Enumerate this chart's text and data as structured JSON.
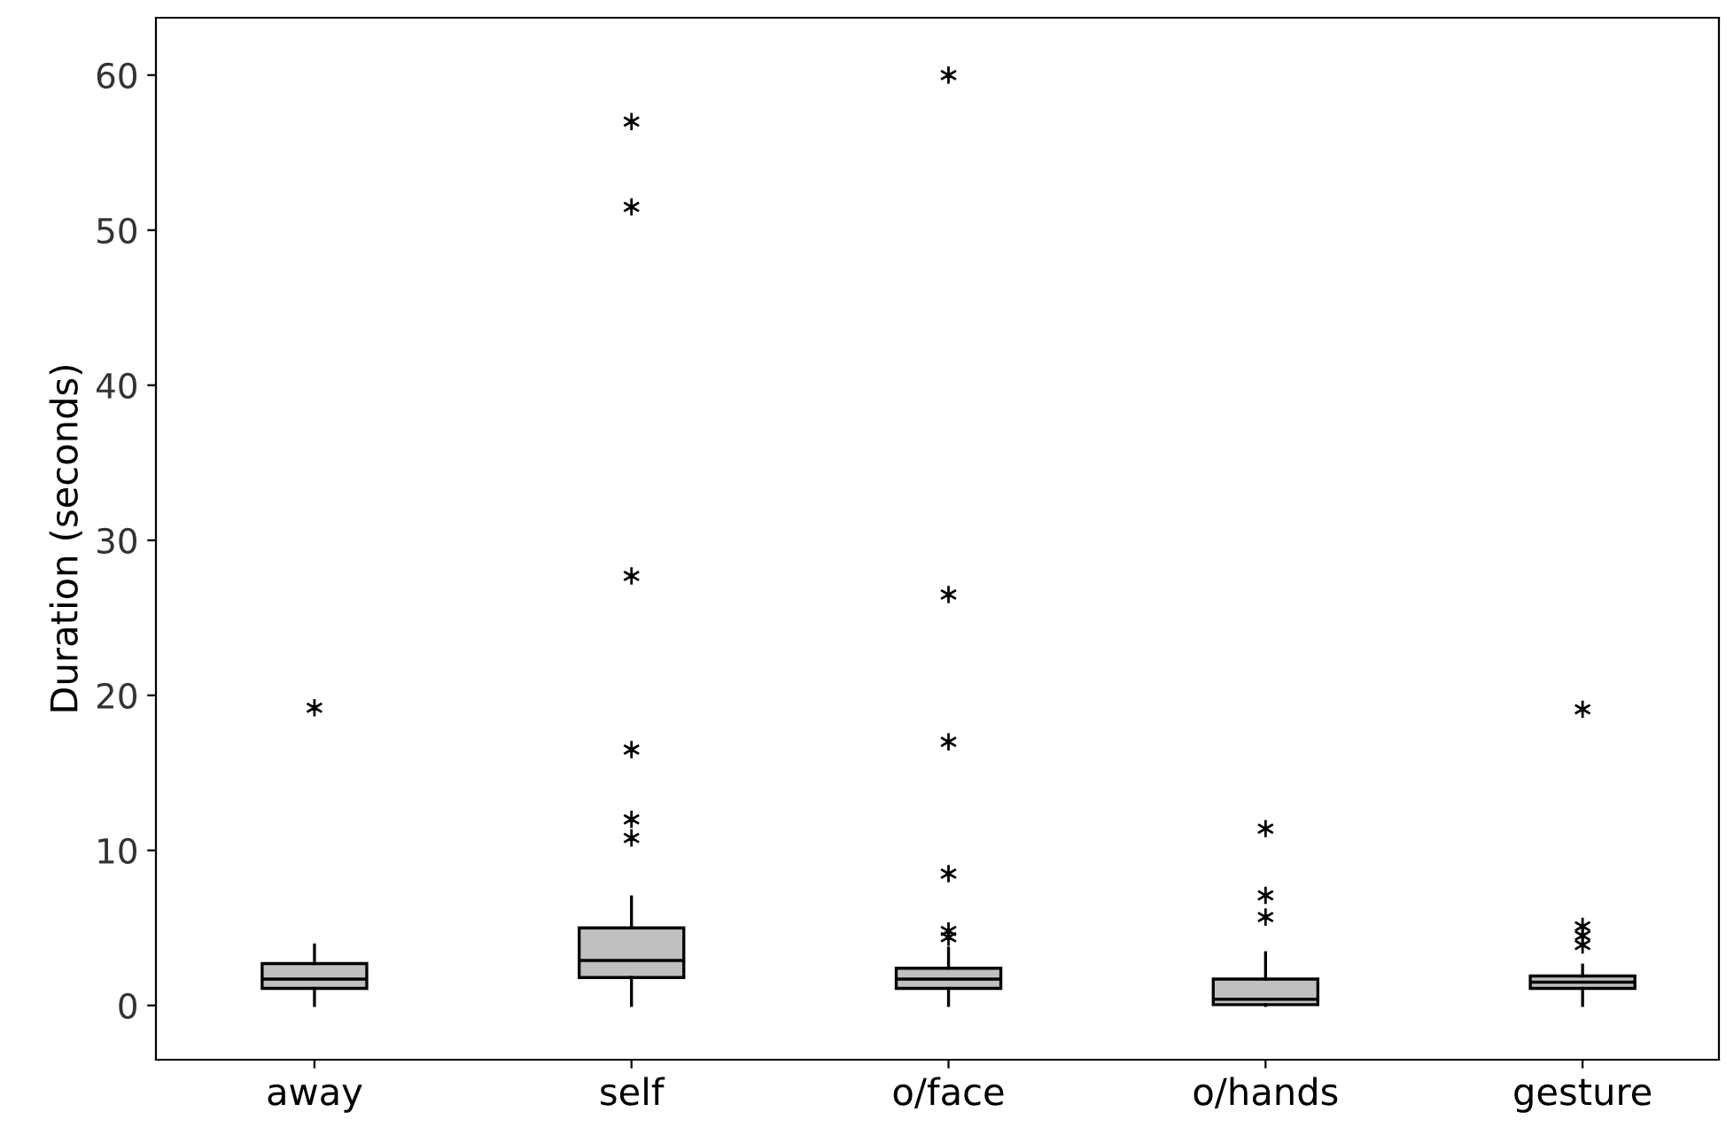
{
  "chart_data": {
    "type": "box",
    "ylabel": "Duration (seconds)",
    "categories": [
      "away",
      "self",
      "o/face",
      "o/hands",
      "gesture"
    ],
    "color": "#c0c0c0",
    "boxes": [
      {
        "low": 0,
        "q1": 1.1,
        "median": 1.7,
        "q3": 2.7,
        "high": 3.9,
        "outliers": [
          19.2
        ]
      },
      {
        "low": 0,
        "q1": 1.8,
        "median": 2.9,
        "q3": 5.0,
        "high": 7.0,
        "outliers": [
          57,
          51.5,
          27.7,
          16.5,
          12.0,
          10.8
        ]
      },
      {
        "low": 0,
        "q1": 1.1,
        "median": 1.7,
        "q3": 2.4,
        "high": 3.7,
        "outliers": [
          60,
          26.5,
          17,
          8.5,
          4.8,
          4.4
        ]
      },
      {
        "low": 0,
        "q1": 0.05,
        "median": 0.4,
        "q3": 1.7,
        "high": 3.4,
        "outliers": [
          11.4,
          7.1,
          5.7
        ]
      },
      {
        "low": 0,
        "q1": 1.1,
        "median": 1.5,
        "q3": 1.9,
        "high": 2.6,
        "outliers": [
          19.1,
          5.1,
          4.5,
          3.9
        ]
      }
    ],
    "marker": "star",
    "ylim": [
      -3.5,
      63.7
    ],
    "yticks": [
      0,
      10,
      20,
      30,
      40,
      50,
      60
    ],
    "grid": false
  }
}
